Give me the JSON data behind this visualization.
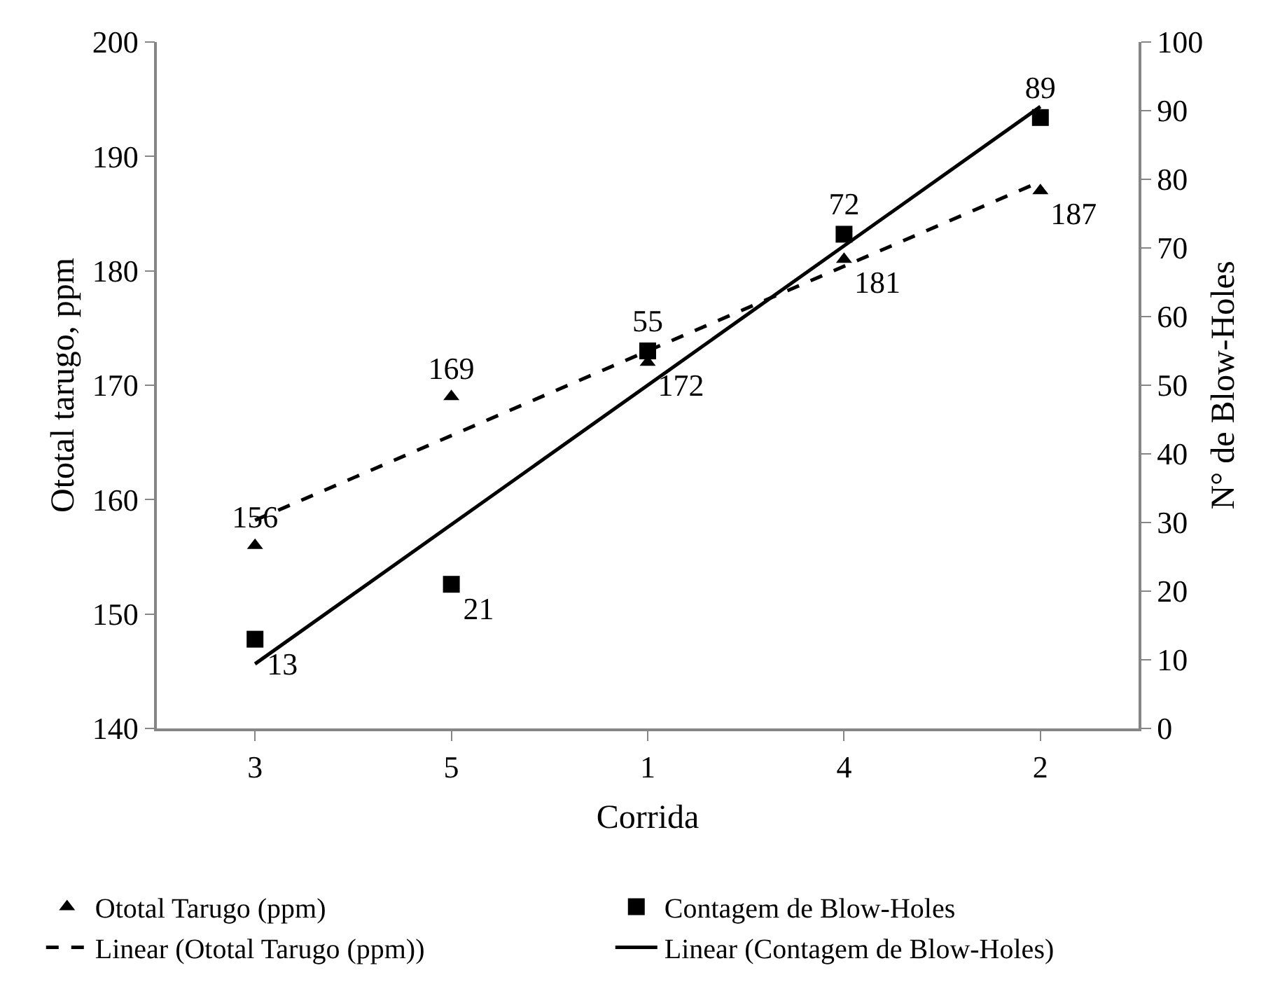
{
  "chart_data": {
    "type": "scatter",
    "xlabel": "Corrida",
    "ylabel": "Ototal tarugo, ppm",
    "y2label": "N° de Blow-Holes",
    "categories": [
      "3",
      "5",
      "1",
      "4",
      "2"
    ],
    "series": [
      {
        "name": "Ototal Tarugo (ppm)",
        "color": "#000000",
        "marker": "triangle",
        "values": [
          156,
          169,
          172,
          181,
          187
        ],
        "value_labels": [
          "156",
          "169",
          "172",
          "181",
          "187"
        ]
      },
      {
        "name": "Contagem de Blow-Holes",
        "color": "#000000",
        "marker": "square",
        "axis": "y2",
        "values": [
          13,
          21,
          55,
          72,
          89
        ],
        "value_labels": [
          "13",
          "21",
          "55",
          "72",
          "89"
        ]
      },
      {
        "name": "Linear (Ototal Tarugo (ppm))",
        "type": "line",
        "color": "#000000",
        "line_style": "dashed",
        "marker": "none",
        "x": [
          "3",
          "2"
        ],
        "values": [
          158.2,
          187.8
        ]
      },
      {
        "name": "Linear (Contagem de Blow-Holes)",
        "type": "line",
        "color": "#000000",
        "line_style": "solid",
        "marker": "none",
        "axis": "y2",
        "x": [
          "3",
          "2"
        ],
        "values": [
          9.4,
          90.6
        ]
      }
    ],
    "ylim": [
      140,
      200
    ],
    "yticks": [
      140,
      150,
      160,
      170,
      180,
      190,
      200
    ],
    "y2lim": [
      0,
      100
    ],
    "y2ticks": [
      0,
      10,
      20,
      30,
      40,
      50,
      60,
      70,
      80,
      90,
      100
    ],
    "legend": "bottom"
  }
}
